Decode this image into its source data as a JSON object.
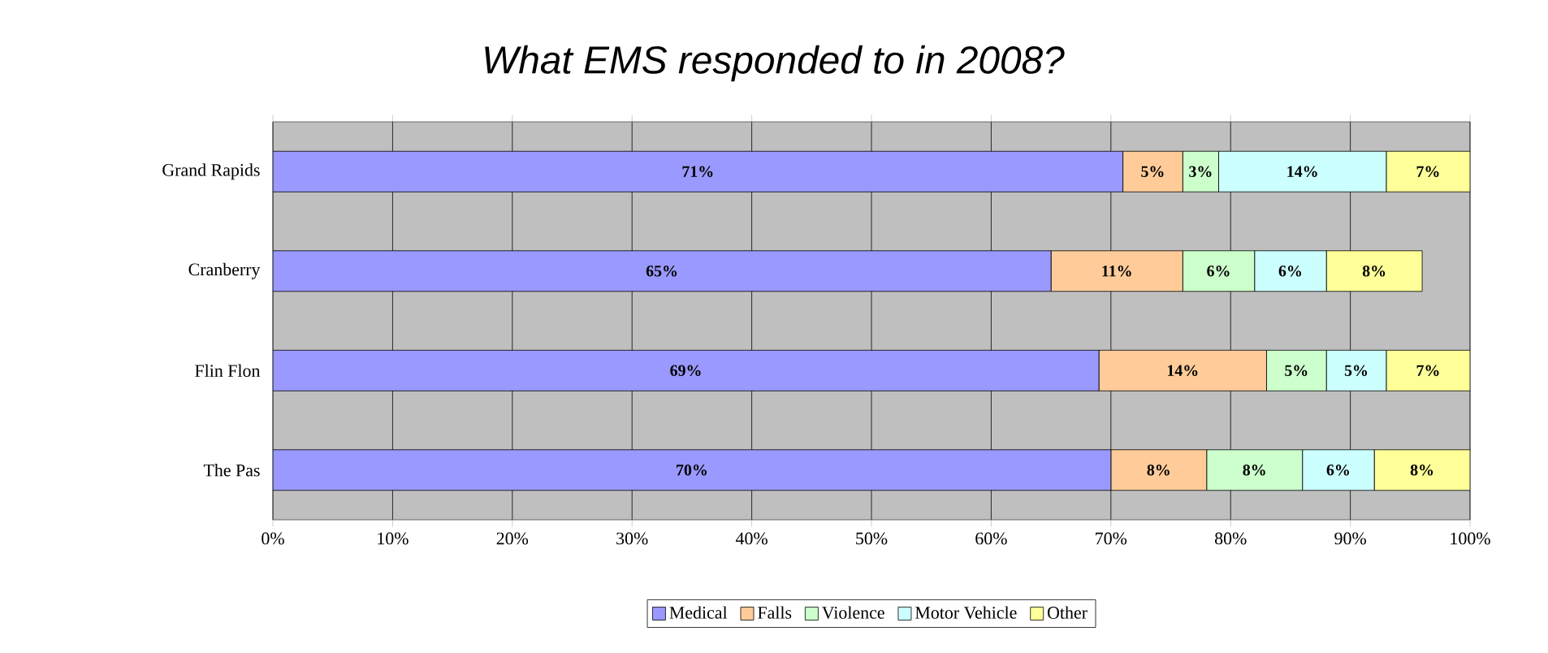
{
  "chart_data": {
    "type": "bar",
    "orientation": "horizontal",
    "stacked": true,
    "title": "What EMS responded to in 2008?",
    "categories": [
      "Grand Rapids",
      "Cranberry",
      "Flin Flon",
      "The Pas"
    ],
    "series": [
      {
        "name": "Medical",
        "color": "#9999ff",
        "values": [
          71,
          65,
          69,
          70
        ],
        "value_labels": [
          "71%",
          "65%",
          "69%",
          "70%"
        ]
      },
      {
        "name": "Falls",
        "color": "#ffcc99",
        "values": [
          5,
          11,
          14,
          8
        ],
        "value_labels": [
          "5%",
          "11%",
          "14%",
          "8%"
        ]
      },
      {
        "name": "Violence",
        "color": "#ccffcc",
        "values": [
          3,
          6,
          5,
          8
        ],
        "value_labels": [
          "3%",
          "6%",
          "5%",
          "8%"
        ]
      },
      {
        "name": "Motor Vehicle",
        "color": "#ccffff",
        "values": [
          14,
          6,
          5,
          6
        ],
        "value_labels": [
          "14%",
          "6%",
          "5%",
          "6%"
        ]
      },
      {
        "name": "Other",
        "color": "#ffff99",
        "values": [
          7,
          8,
          7,
          8
        ],
        "value_labels": [
          "7%",
          "8%",
          "7%",
          "8%"
        ]
      }
    ],
    "xlim": [
      0,
      100
    ],
    "xticks": [
      {
        "value": 0,
        "label": "0%"
      },
      {
        "value": 10,
        "label": "10%"
      },
      {
        "value": 20,
        "label": "20%"
      },
      {
        "value": 30,
        "label": "30%"
      },
      {
        "value": 40,
        "label": "40%"
      },
      {
        "value": 50,
        "label": "50%"
      },
      {
        "value": 60,
        "label": "60%"
      },
      {
        "value": 70,
        "label": "70%"
      },
      {
        "value": 80,
        "label": "80%"
      },
      {
        "value": 90,
        "label": "90%"
      },
      {
        "value": 100,
        "label": "100%"
      }
    ],
    "grid": "x",
    "legend": "bottom"
  }
}
